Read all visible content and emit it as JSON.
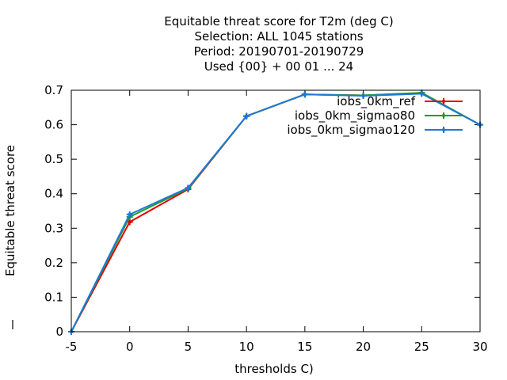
{
  "chart_data": {
    "type": "line",
    "title_lines": [
      "Equitable threat score  for T2m (deg C)",
      "Selection: ALL   1045 stations",
      "Period: 20190701-20190729",
      "Used {00} + 00 01 ... 24"
    ],
    "xlabel": "thresholds C)",
    "ylabel": "Equitable threat score",
    "x": [
      -5,
      0,
      5,
      10,
      15,
      20,
      25,
      30
    ],
    "xlim": [
      -5,
      30
    ],
    "ylim": [
      0,
      0.7
    ],
    "xticks": [
      "-5",
      "0",
      "5",
      "10",
      "15",
      "20",
      "25",
      "30"
    ],
    "yticks": [
      "0",
      "0.1",
      "0.2",
      "0.3",
      "0.4",
      "0.5",
      "0.6",
      "0.7"
    ],
    "legend_position": "top-right",
    "series": [
      {
        "name": "iobs_0km_ref",
        "color": "#e00000",
        "values": [
          0.0,
          0.318,
          0.413,
          0.625,
          0.688,
          0.685,
          0.692,
          0.6
        ]
      },
      {
        "name": "iobs_0km_sigmao80",
        "color": "#1aa01a",
        "values": [
          0.0,
          0.333,
          0.415,
          0.625,
          0.688,
          0.685,
          0.693,
          0.6
        ]
      },
      {
        "name": "iobs_0km_sigmao120",
        "color": "#1e78d8",
        "values": [
          0.0,
          0.34,
          0.417,
          0.625,
          0.688,
          0.684,
          0.69,
          0.6
        ]
      }
    ]
  }
}
